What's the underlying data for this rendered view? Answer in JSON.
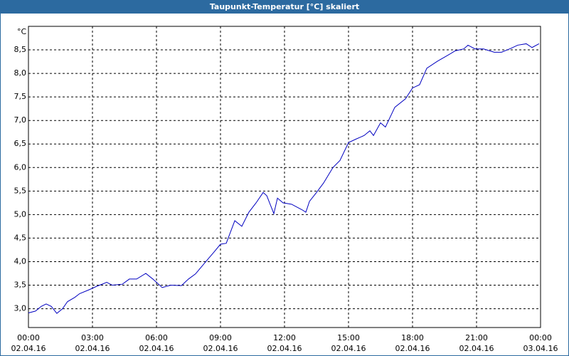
{
  "chart_data": {
    "type": "line",
    "title": "Taupunkt-Temperatur [°C] skaliert",
    "y_unit": "°C",
    "xlim": [
      0,
      24
    ],
    "ylim": [
      2.6,
      9.0
    ],
    "xticks": [
      {
        "value": 0,
        "label": "00:00",
        "date": "02.04.16"
      },
      {
        "value": 3,
        "label": "03:00",
        "date": "02.04.16"
      },
      {
        "value": 6,
        "label": "06:00",
        "date": "02.04.16"
      },
      {
        "value": 9,
        "label": "09:00",
        "date": "02.04.16"
      },
      {
        "value": 12,
        "label": "12:00",
        "date": "02.04.16"
      },
      {
        "value": 15,
        "label": "15:00",
        "date": "02.04.16"
      },
      {
        "value": 18,
        "label": "18:00",
        "date": "02.04.16"
      },
      {
        "value": 21,
        "label": "21:00",
        "date": "02.04.16"
      },
      {
        "value": 24,
        "label": "00:00",
        "date": "03.04.16"
      }
    ],
    "yticks": [
      {
        "value": 3.0,
        "label": "3,0"
      },
      {
        "value": 3.5,
        "label": "3,5"
      },
      {
        "value": 4.0,
        "label": "4,0"
      },
      {
        "value": 4.5,
        "label": "4,5"
      },
      {
        "value": 5.0,
        "label": "5,0"
      },
      {
        "value": 5.5,
        "label": "5,5"
      },
      {
        "value": 6.0,
        "label": "6,0"
      },
      {
        "value": 6.5,
        "label": "6,5"
      },
      {
        "value": 7.0,
        "label": "7,0"
      },
      {
        "value": 7.5,
        "label": "7,5"
      },
      {
        "value": 8.0,
        "label": "8,0"
      },
      {
        "value": 8.5,
        "label": "8,5"
      }
    ],
    "grid": true,
    "x": [
      0,
      0.33,
      0.6,
      0.83,
      1.07,
      1.33,
      1.6,
      1.83,
      2.17,
      2.4,
      2.83,
      3.17,
      3.67,
      3.93,
      4.4,
      4.73,
      5.07,
      5.5,
      5.83,
      6.27,
      6.67,
      7.17,
      7.5,
      7.83,
      8.33,
      8.67,
      9,
      9.27,
      9.67,
      10,
      10.33,
      10.67,
      11,
      11.17,
      11.5,
      11.67,
      11.93,
      12.33,
      12.83,
      13,
      13.17,
      13.5,
      13.83,
      14.27,
      14.6,
      15,
      15.33,
      15.73,
      16,
      16.17,
      16.5,
      16.73,
      17.17,
      17.67,
      18,
      18.33,
      18.67,
      19.17,
      19.67,
      20,
      20.4,
      20.6,
      20.93,
      21.33,
      21.83,
      22.17,
      22.6,
      22.93,
      23.33,
      23.6,
      23.93
    ],
    "series": [
      {
        "name": "Taupunkt",
        "color": "#0000c0",
        "values": [
          2.91,
          2.95,
          3.05,
          3.1,
          3.05,
          2.9,
          3.0,
          3.15,
          3.24,
          3.32,
          3.4,
          3.47,
          3.56,
          3.5,
          3.52,
          3.63,
          3.63,
          3.75,
          3.63,
          3.45,
          3.5,
          3.49,
          3.63,
          3.74,
          4.01,
          4.19,
          4.37,
          4.39,
          4.87,
          4.75,
          5.05,
          5.25,
          5.47,
          5.4,
          5.02,
          5.35,
          5.25,
          5.22,
          5.1,
          5.05,
          5.28,
          5.47,
          5.67,
          6.0,
          6.15,
          6.53,
          6.6,
          6.68,
          6.78,
          6.68,
          6.95,
          6.86,
          7.28,
          7.46,
          7.69,
          7.76,
          8.11,
          8.26,
          8.39,
          8.48,
          8.52,
          8.6,
          8.52,
          8.52,
          8.45,
          8.45,
          8.53,
          8.6,
          8.63,
          8.55,
          8.63
        ]
      }
    ]
  }
}
